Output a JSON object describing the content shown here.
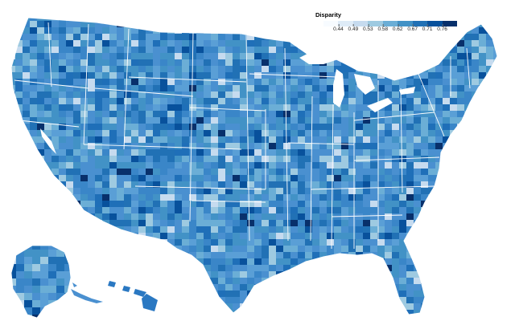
{
  "legend": {
    "title": "Disparity",
    "ticks": [
      "0.44",
      "0.49",
      "0.53",
      "0.58",
      "0.62",
      "0.67",
      "0.71",
      "0.76"
    ],
    "colors": [
      "#f7fbff",
      "#deebf7",
      "#c6dbef",
      "#9ecae1",
      "#6baed6",
      "#4292c6",
      "#2171b5",
      "#08519c",
      "#08306b"
    ]
  },
  "map": {
    "type": "choropleth",
    "region": "United States counties",
    "base_color": "#4a90d0",
    "state_border_color": "#ffffff"
  }
}
